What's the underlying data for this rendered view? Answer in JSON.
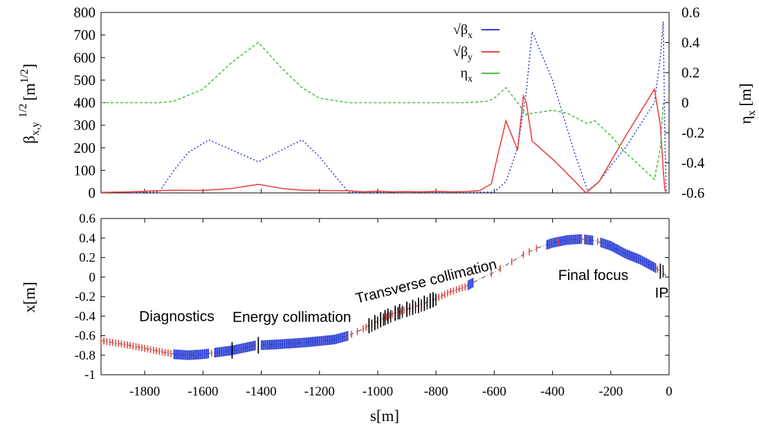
{
  "chart_data": [
    {
      "type": "line",
      "xlim": [
        -1950,
        0
      ],
      "ylim": [
        0,
        800
      ],
      "y2lim": [
        -0.6,
        0.6
      ],
      "x_ticks": [],
      "y_ticks": [
        "0",
        "100",
        "200",
        "300",
        "400",
        "500",
        "600",
        "700",
        "800"
      ],
      "y2_ticks": [
        "-0.6",
        "-0.4",
        "-0.2",
        "0",
        "0.2",
        "0.4",
        "0.6"
      ],
      "ylabel_main": "β",
      "ylabel_sub": "x,y",
      "ylabel_sup": "1/2",
      "ylabel_unit": "[m",
      "ylabel_unit_sup": "1/2",
      "ylabel_unit_end": "]",
      "y2label_main": "η",
      "y2label_sub": "x",
      "y2label_unit": " [m]",
      "legend_position": "top-center",
      "grid": false,
      "series": [
        {
          "name": "√β",
          "name_sub": "x",
          "color": "#2a3ed6",
          "style": "dotted",
          "x": [
            -1950,
            -1900,
            -1850,
            -1800,
            -1750,
            -1700,
            -1650,
            -1580,
            -1500,
            -1410,
            -1330,
            -1260,
            -1200,
            -1150,
            -1100,
            -1050,
            -1000,
            -950,
            -900,
            -850,
            -800,
            -750,
            -700,
            -650,
            -600,
            -560,
            -520,
            -490,
            -470,
            -400,
            -330,
            -280,
            -240,
            -200,
            -150,
            -100,
            -50,
            -30,
            -20,
            -15,
            -10
          ],
          "y": [
            2,
            3,
            3,
            4,
            5,
            100,
            180,
            235,
            190,
            138,
            190,
            235,
            160,
            80,
            3,
            5,
            3,
            4,
            5,
            3,
            4,
            5,
            3,
            3,
            4,
            50,
            200,
            450,
            715,
            500,
            200,
            10,
            50,
            120,
            200,
            300,
            400,
            600,
            760,
            300,
            0
          ]
        },
        {
          "name": "√β",
          "name_sub": "y",
          "color": "#e8413c",
          "style": "solid",
          "x": [
            -1950,
            -1850,
            -1750,
            -1700,
            -1600,
            -1500,
            -1410,
            -1330,
            -1260,
            -1200,
            -1150,
            -1100,
            -1050,
            -1000,
            -950,
            -900,
            -850,
            -800,
            -750,
            -700,
            -650,
            -610,
            -600,
            -560,
            -520,
            -500,
            -490,
            -470,
            -400,
            -330,
            -285,
            -240,
            -150,
            -50,
            -30,
            -20,
            -15,
            -10
          ],
          "y": [
            2,
            5,
            10,
            12,
            11,
            20,
            38,
            20,
            12,
            11,
            10,
            10,
            5,
            8,
            5,
            6,
            5,
            7,
            5,
            6,
            10,
            40,
            100,
            320,
            190,
            430,
            400,
            230,
            150,
            60,
            0,
            50,
            250,
            460,
            300,
            100,
            20,
            0
          ]
        },
        {
          "name": "η",
          "name_sub": "x",
          "color": "#46c23d",
          "style": "dashed",
          "x": [
            -1950,
            -1800,
            -1750,
            -1700,
            -1600,
            -1500,
            -1410,
            -1330,
            -1260,
            -1200,
            -1100,
            -1000,
            -900,
            -800,
            -700,
            -620,
            -600,
            -560,
            -520,
            -490,
            -470,
            -430,
            -400,
            -350,
            -300,
            -280,
            -255,
            -200,
            -150,
            -100,
            -50,
            -30,
            -20
          ],
          "y": [
            0.0,
            0.0,
            0.0,
            0.01,
            0.09,
            0.27,
            0.4,
            0.23,
            0.1,
            0.03,
            0.0,
            0.0,
            0.0,
            0.0,
            0.0,
            0.01,
            0.03,
            0.1,
            0.0,
            -0.08,
            -0.07,
            -0.06,
            -0.05,
            -0.07,
            -0.12,
            -0.14,
            -0.12,
            -0.22,
            -0.33,
            -0.42,
            -0.51,
            -0.3,
            0.0
          ]
        }
      ]
    },
    {
      "type": "line",
      "xlabel": "s[m]",
      "ylabel": "x[m]",
      "xlim": [
        -1950,
        0
      ],
      "ylim": [
        -1,
        0.6
      ],
      "x_ticks": [
        "-1800",
        "-1600",
        "-1400",
        "-1200",
        "-1000",
        "-800",
        "-600",
        "-400",
        "-200",
        "0"
      ],
      "y_ticks": [
        "-1",
        "-0.8",
        "-0.6",
        "-0.4",
        "-0.2",
        "0",
        "0.2",
        "0.4",
        "0.6"
      ],
      "grid": false,
      "series": [
        {
          "name": "",
          "color": "#000000",
          "style": "dash-dot",
          "x": [
            -1950,
            -1850,
            -1750,
            -1700,
            -1650,
            -1600,
            -1500,
            -1420,
            -1350,
            -1250,
            -1150,
            -1100,
            -1050,
            -1000,
            -950,
            -900,
            -850,
            -800,
            -750,
            -700,
            -650,
            -600,
            -550,
            -500,
            -450,
            -400,
            -350,
            -300,
            -250,
            -200,
            -150,
            -100,
            -50,
            -20,
            -5
          ],
          "y": [
            -0.65,
            -0.7,
            -0.76,
            -0.79,
            -0.8,
            -0.79,
            -0.75,
            -0.7,
            -0.69,
            -0.67,
            -0.64,
            -0.6,
            -0.53,
            -0.45,
            -0.38,
            -0.33,
            -0.28,
            -0.22,
            -0.15,
            -0.1,
            -0.02,
            0.05,
            0.14,
            0.23,
            0.3,
            0.35,
            0.38,
            0.39,
            0.37,
            0.32,
            0.24,
            0.18,
            0.1,
            0.04,
            0.0
          ]
        }
      ],
      "annotations": [
        {
          "text": "Diagnostics",
          "x": -1690,
          "y": -0.45
        },
        {
          "text": "Energy collimation",
          "x": -1295,
          "y": -0.46
        },
        {
          "text": "Transverse collimation",
          "x": -830,
          "y": -0.09,
          "rotate": -14
        },
        {
          "text": "Final focus",
          "x": -260,
          "y": -0.03
        },
        {
          "text": "IP",
          "x": -25,
          "y": -0.21
        }
      ],
      "elements": {
        "blue_blocks": [
          [
            -1700,
            -1580
          ],
          [
            -1560,
            -1420
          ],
          [
            -1400,
            -1100
          ],
          [
            -690,
            -670
          ],
          [
            -420,
            -300
          ],
          [
            -290,
            -260
          ],
          [
            -235,
            -45
          ]
        ],
        "red_marks": [
          -1950,
          -1940,
          -1930,
          -1920,
          -1910,
          -1900,
          -1890,
          -1880,
          -1870,
          -1860,
          -1850,
          -1840,
          -1830,
          -1820,
          -1810,
          -1800,
          -1790,
          -1780,
          -1770,
          -1760,
          -1750,
          -1740,
          -1730,
          -1720,
          -1710,
          -1570,
          -1420,
          -1110,
          -1090,
          -1070,
          -1050,
          -1040,
          -1030,
          -1020,
          -1010,
          -1000,
          -990,
          -980,
          -970,
          -960,
          -950,
          -940,
          -930,
          -920,
          -910,
          -900,
          -890,
          -880,
          -870,
          -860,
          -850,
          -840,
          -830,
          -820,
          -810,
          -800,
          -790,
          -780,
          -770,
          -760,
          -750,
          -740,
          -730,
          -720,
          -710,
          -700,
          -610,
          -580,
          -540,
          -500,
          -480,
          -455,
          -380,
          -300,
          -280,
          -245,
          -40,
          -30
        ],
        "black_marks": [
          -1500,
          -1410,
          -1030,
          -1010,
          -990,
          -975,
          -965,
          -940,
          -925,
          -900,
          -880,
          -860,
          -840,
          -820,
          -810,
          -30
        ],
        "tall_black_marks": [
          -1500,
          -1410
        ]
      }
    }
  ]
}
